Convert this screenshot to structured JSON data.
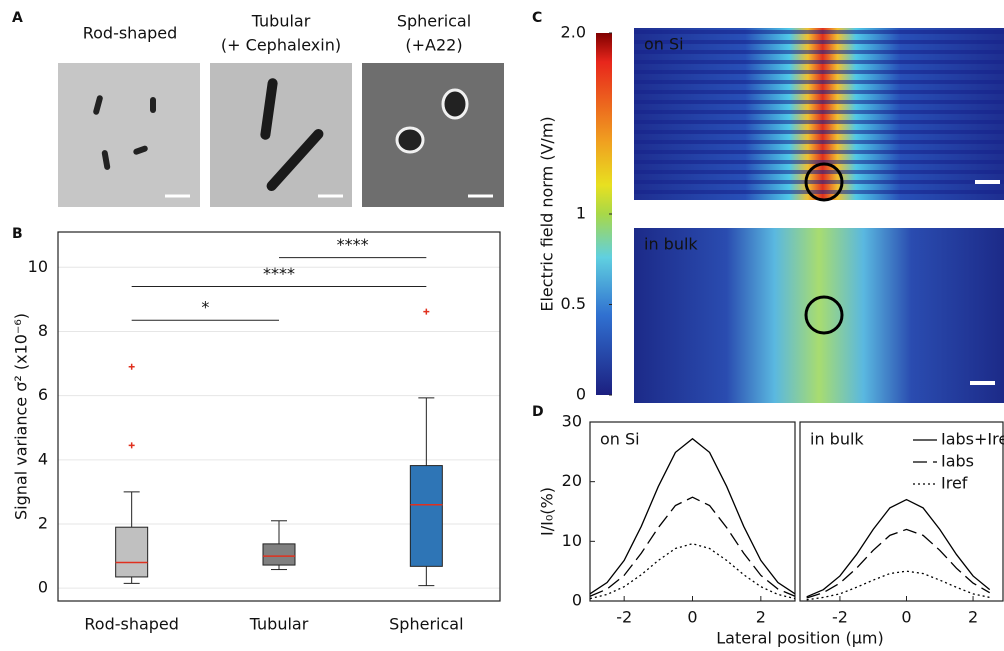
{
  "panel_labels": [
    "A",
    "B",
    "C",
    "D"
  ],
  "panel_a": {
    "titles": [
      [
        "Rod-shaped"
      ],
      [
        "Tubular",
        "(+ Cephalexin)"
      ],
      [
        "Spherical",
        "(+A22)"
      ]
    ]
  },
  "chart_data": [
    {
      "type": "box",
      "categories": [
        "Rod-shaped",
        "Tubular",
        "Spherical"
      ],
      "boxes": [
        {
          "whislo": 0.15,
          "q1": 0.35,
          "med": 0.8,
          "q3": 1.9,
          "whishi": 3.0,
          "fliers": [
            4.45,
            6.9
          ],
          "color": "#c0c0c0"
        },
        {
          "whislo": 0.58,
          "q1": 0.72,
          "med": 1.0,
          "q3": 1.38,
          "whishi": 2.1,
          "fliers": [],
          "color": "#808080"
        },
        {
          "whislo": 0.08,
          "q1": 0.68,
          "med": 2.6,
          "q3": 3.82,
          "whishi": 5.93,
          "fliers": [
            8.62
          ],
          "color": "#2e75b6"
        }
      ],
      "median_color": "#e0301e",
      "ylabel": "Signal variance σ² (x10⁻⁶)",
      "ylim": [
        -0.4,
        11.1
      ],
      "yticks": [
        0,
        2,
        4,
        6,
        8,
        10
      ],
      "grid": true,
      "annotations": [
        {
          "text": "*",
          "between": [
            "Rod-shaped",
            "Tubular"
          ],
          "y": 8.35
        },
        {
          "text": "****",
          "between": [
            "Rod-shaped",
            "Spherical"
          ],
          "y": 9.4
        },
        {
          "text": "****",
          "between": [
            "Tubular",
            "Spherical"
          ],
          "y": 10.3
        }
      ]
    },
    {
      "type": "heatmap",
      "panels": [
        "on Si",
        "in bulk"
      ],
      "ylabel": "Electric field norm (V/m)",
      "ylim": [
        0,
        2
      ],
      "yticks": [
        {
          "value": 2,
          "label": "2.0"
        },
        1,
        0.5,
        0
      ]
    },
    {
      "type": "line",
      "annotation": "on Si",
      "x": [
        -3,
        -2.5,
        -2,
        -1.5,
        -1,
        -0.5,
        0,
        0.5,
        1,
        1.5,
        2,
        2.5,
        3
      ],
      "series": [
        {
          "color": "#000000",
          "dash": "solid",
          "values": [
            1.2,
            3.1,
            6.8,
            12.5,
            19.2,
            24.9,
            27.2,
            24.9,
            19.2,
            12.5,
            6.8,
            3.1,
            1.2
          ]
        },
        {
          "color": "#000000",
          "dash": "dashed",
          "values": [
            0.8,
            2.0,
            4.3,
            8.0,
            12.3,
            16.0,
            17.4,
            16.0,
            12.3,
            8.0,
            4.3,
            2.0,
            0.8
          ]
        },
        {
          "color": "#000000",
          "dash": "dotted",
          "values": [
            0.4,
            1.1,
            2.4,
            4.4,
            6.8,
            8.8,
            9.6,
            8.8,
            6.8,
            4.4,
            2.4,
            1.1,
            0.4
          ]
        }
      ],
      "xlim": [
        -3,
        3
      ],
      "ylim": [
        0,
        30
      ],
      "xticks": [
        -2,
        0,
        2
      ],
      "yticks": [
        0,
        10,
        20,
        30
      ],
      "ylabel": "I/I₀(%)",
      "xlabel": "Lateral position (μm)"
    },
    {
      "type": "line",
      "annotation": "in bulk",
      "x": [
        -3,
        -2.5,
        -2,
        -1.5,
        -1,
        -0.5,
        0,
        0.5,
        1,
        1.5,
        2,
        2.5
      ],
      "series": [
        {
          "name": "Iabs+Iref",
          "color": "#000000",
          "dash": "solid",
          "values": [
            0.7,
            1.9,
            4.2,
            7.8,
            12.0,
            15.6,
            17,
            15.6,
            12.0,
            7.8,
            4.2,
            1.9
          ]
        },
        {
          "name": "Iabs",
          "color": "#000000",
          "dash": "dashed",
          "values": [
            0.5,
            1.4,
            3.0,
            5.5,
            8.5,
            11.0,
            12,
            11.0,
            8.5,
            5.5,
            3.0,
            1.4
          ]
        },
        {
          "name": "Iref",
          "color": "#000000",
          "dash": "dotted",
          "values": [
            0.2,
            0.6,
            1.2,
            2.3,
            3.5,
            4.6,
            5,
            4.6,
            3.5,
            2.3,
            1.2,
            0.6
          ]
        }
      ],
      "xlim": [
        -3.2,
        2.9
      ],
      "ylim": [
        0,
        30
      ],
      "xticks": [
        -2,
        0,
        2
      ],
      "legend": "upper right"
    }
  ]
}
